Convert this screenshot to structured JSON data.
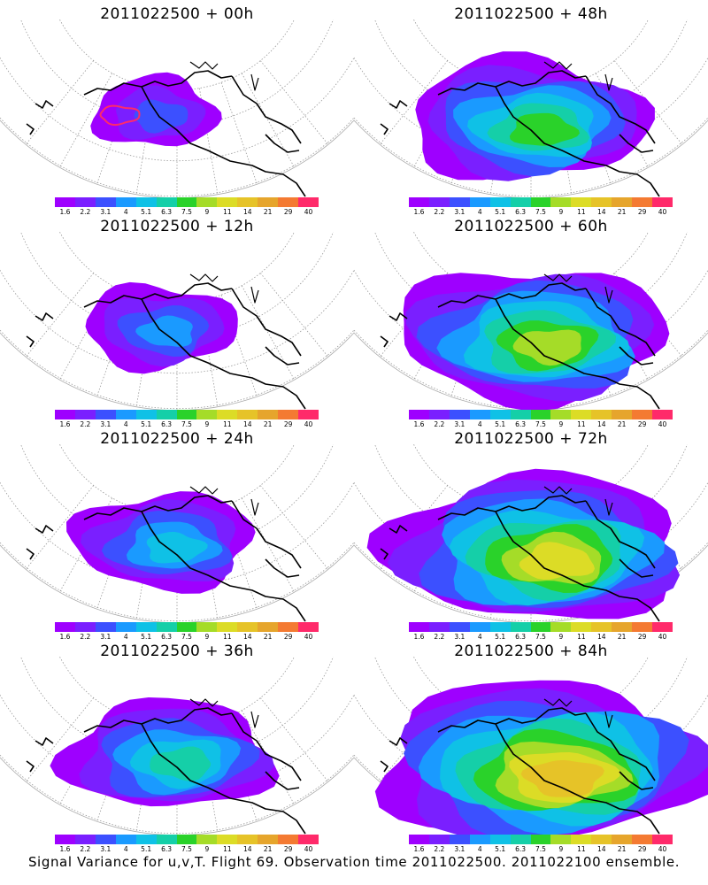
{
  "panels": [
    {
      "title": "2011022500  + 00h",
      "level": 0
    },
    {
      "title": "2011022500  + 48h",
      "level": 4
    },
    {
      "title": "2011022500  + 12h",
      "level": 1
    },
    {
      "title": "2011022500  + 60h",
      "level": 5
    },
    {
      "title": "2011022500  + 24h",
      "level": 2
    },
    {
      "title": "2011022500  + 72h",
      "level": 6
    },
    {
      "title": "2011022500  + 36h",
      "level": 3
    },
    {
      "title": "2011022500  + 84h",
      "level": 7
    }
  ],
  "colorbar": {
    "labels": [
      "1.6",
      "2.2",
      "3.1",
      "4",
      "5.1",
      "6.3",
      "7.5",
      "9",
      "11",
      "14",
      "21",
      "29",
      "40"
    ],
    "colors": [
      "#9e00ff",
      "#7a1fff",
      "#3c50ff",
      "#1a9aff",
      "#0fc1e6",
      "#15cfa8",
      "#2ad22a",
      "#a5dc28",
      "#dcdc26",
      "#e6c328",
      "#e6a52c",
      "#f47a32",
      "#ff2a6a"
    ]
  },
  "footer": "Signal Variance for u,v,T. Flight 69. Observation time 2011022500. 2011022100 ensemble."
}
